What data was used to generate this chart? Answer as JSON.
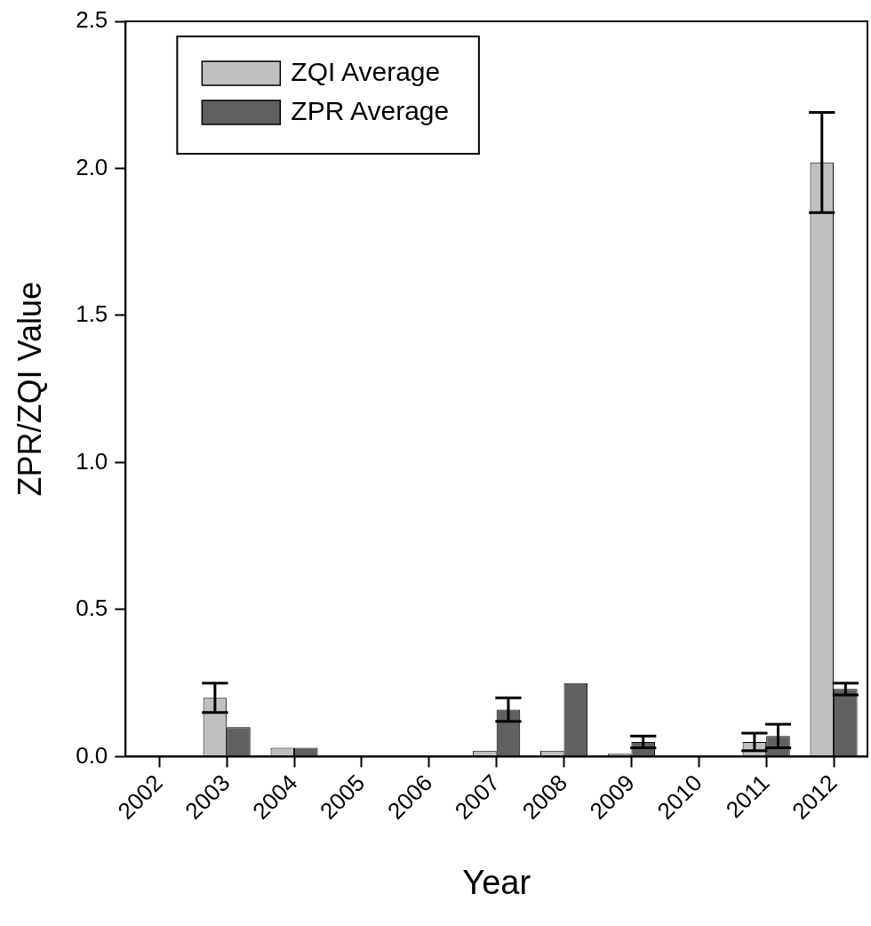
{
  "chart_data": {
    "type": "bar",
    "xlabel": "Year",
    "ylabel": "ZPR/ZQI Value",
    "categories": [
      "2002",
      "2003",
      "2004",
      "2005",
      "2006",
      "2007",
      "2008",
      "2009",
      "2010",
      "2011",
      "2012"
    ],
    "series": [
      {
        "name": "ZQI Average",
        "color": "#c0c0c0",
        "values": [
          0,
          0.2,
          0.03,
          0,
          0,
          0.02,
          0.02,
          0.01,
          0,
          0.05,
          2.02
        ],
        "errors": [
          null,
          0.05,
          null,
          null,
          null,
          null,
          null,
          null,
          null,
          0.03,
          0.17
        ]
      },
      {
        "name": "ZPR Average",
        "color": "#606060",
        "values": [
          0,
          0.1,
          0.03,
          0,
          0,
          0.16,
          0.25,
          0.05,
          0,
          0.07,
          0.23
        ],
        "errors": [
          null,
          null,
          null,
          null,
          null,
          0.04,
          null,
          0.02,
          null,
          0.04,
          0.02
        ]
      }
    ],
    "ylim": [
      0,
      2.5
    ],
    "yticks": [
      {
        "value": 0,
        "label": "0.0"
      },
      {
        "value": 0.5,
        "label": "0.5"
      },
      {
        "value": 1,
        "label": "1.0"
      },
      {
        "value": 1.5,
        "label": "1.5"
      },
      {
        "value": 2,
        "label": "2.0"
      },
      {
        "value": 2.5,
        "label": "2.5"
      }
    ],
    "grid": false,
    "legend": "top left"
  }
}
